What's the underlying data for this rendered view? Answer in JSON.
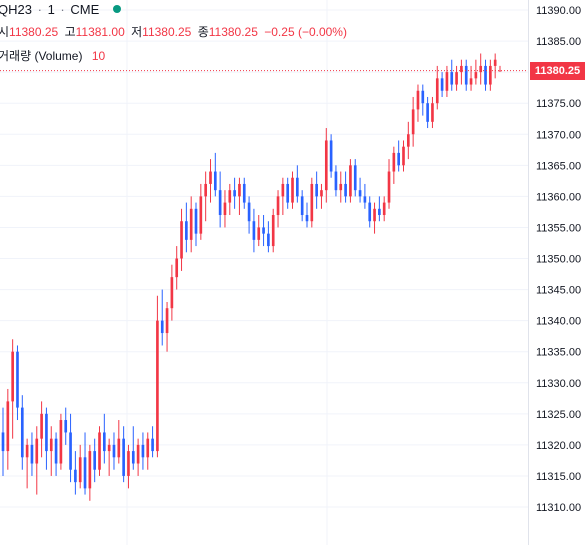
{
  "legend": {
    "symbol": "QH23",
    "interval": "1",
    "exchange": "CME",
    "separator": "·",
    "open_label": "시",
    "open": "11380.25",
    "high_label": "고",
    "high": "11381.00",
    "low_label": "저",
    "low": "11380.25",
    "close_label": "종",
    "close": "11380.25",
    "change": "−0.25 (−0.00%)",
    "volume_label": "거래량 (Volume)",
    "volume_value": "10"
  },
  "colors": {
    "up": "#f23645",
    "down": "#2962ff",
    "grid": "#f0f3fa",
    "axis_text": "#131722",
    "price_line": "#f23645",
    "status_dot": "#089981"
  },
  "chart_data": {
    "type": "candlestick",
    "y_axis": {
      "min": 11310,
      "max": 11390,
      "ticks": [
        "11390.00",
        "11385.00",
        "11380.00",
        "11375.00",
        "11370.00",
        "11365.00",
        "11360.00",
        "11355.00",
        "11350.00",
        "11345.00",
        "11340.00",
        "11335.00",
        "11330.00",
        "11325.00",
        "11320.00",
        "11315.00",
        "11310.00"
      ],
      "position": "right"
    },
    "last_price": "11380.25",
    "grid": true,
    "series": [
      {
        "o": 11322,
        "h": 11326,
        "l": 11315,
        "c": 11319
      },
      {
        "o": 11319,
        "h": 11329,
        "l": 11316,
        "c": 11327
      },
      {
        "o": 11327,
        "h": 11337,
        "l": 11321,
        "c": 11335
      },
      {
        "o": 11335,
        "h": 11336,
        "l": 11324,
        "c": 11326
      },
      {
        "o": 11326,
        "h": 11328,
        "l": 11316,
        "c": 11318
      },
      {
        "o": 11318,
        "h": 11321,
        "l": 11313,
        "c": 11320
      },
      {
        "o": 11320,
        "h": 11322,
        "l": 11315,
        "c": 11317
      },
      {
        "o": 11317,
        "h": 11323,
        "l": 11312,
        "c": 11321
      },
      {
        "o": 11321,
        "h": 11327,
        "l": 11318,
        "c": 11325
      },
      {
        "o": 11325,
        "h": 11326,
        "l": 11316,
        "c": 11319
      },
      {
        "o": 11319,
        "h": 11323,
        "l": 11315,
        "c": 11321
      },
      {
        "o": 11321,
        "h": 11322,
        "l": 11315,
        "c": 11317
      },
      {
        "o": 11317,
        "h": 11325,
        "l": 11316,
        "c": 11324
      },
      {
        "o": 11324,
        "h": 11326,
        "l": 11320,
        "c": 11322
      },
      {
        "o": 11322,
        "h": 11325,
        "l": 11314,
        "c": 11316
      },
      {
        "o": 11316,
        "h": 11319,
        "l": 11312,
        "c": 11314
      },
      {
        "o": 11314,
        "h": 11320,
        "l": 11313,
        "c": 11318
      },
      {
        "o": 11318,
        "h": 11322,
        "l": 11312,
        "c": 11313
      },
      {
        "o": 11313,
        "h": 11320,
        "l": 11311,
        "c": 11319
      },
      {
        "o": 11319,
        "h": 11321,
        "l": 11314,
        "c": 11316
      },
      {
        "o": 11316,
        "h": 11323,
        "l": 11315,
        "c": 11322
      },
      {
        "o": 11322,
        "h": 11325,
        "l": 11317,
        "c": 11319
      },
      {
        "o": 11319,
        "h": 11321,
        "l": 11315,
        "c": 11320
      },
      {
        "o": 11320,
        "h": 11322,
        "l": 11316,
        "c": 11318
      },
      {
        "o": 11318,
        "h": 11324,
        "l": 11317,
        "c": 11321
      },
      {
        "o": 11321,
        "h": 11323,
        "l": 11314,
        "c": 11315
      },
      {
        "o": 11315,
        "h": 11320,
        "l": 11313,
        "c": 11319
      },
      {
        "o": 11319,
        "h": 11323,
        "l": 11316,
        "c": 11317
      },
      {
        "o": 11317,
        "h": 11321,
        "l": 11315,
        "c": 11320
      },
      {
        "o": 11320,
        "h": 11322,
        "l": 11316,
        "c": 11318
      },
      {
        "o": 11318,
        "h": 11322,
        "l": 11316,
        "c": 11321
      },
      {
        "o": 11321,
        "h": 11323,
        "l": 11318,
        "c": 11319
      },
      {
        "o": 11319,
        "h": 11344,
        "l": 11318,
        "c": 11340
      },
      {
        "o": 11340,
        "h": 11345,
        "l": 11336,
        "c": 11338
      },
      {
        "o": 11338,
        "h": 11343,
        "l": 11335,
        "c": 11342
      },
      {
        "o": 11342,
        "h": 11349,
        "l": 11340,
        "c": 11347
      },
      {
        "o": 11347,
        "h": 11352,
        "l": 11345,
        "c": 11350
      },
      {
        "o": 11350,
        "h": 11358,
        "l": 11348,
        "c": 11356
      },
      {
        "o": 11356,
        "h": 11359,
        "l": 11351,
        "c": 11353
      },
      {
        "o": 11353,
        "h": 11360,
        "l": 11351,
        "c": 11358
      },
      {
        "o": 11358,
        "h": 11359,
        "l": 11352,
        "c": 11354
      },
      {
        "o": 11354,
        "h": 11362,
        "l": 11353,
        "c": 11360
      },
      {
        "o": 11360,
        "h": 11364,
        "l": 11356,
        "c": 11362
      },
      {
        "o": 11362,
        "h": 11366,
        "l": 11359,
        "c": 11364
      },
      {
        "o": 11364,
        "h": 11367,
        "l": 11360,
        "c": 11361
      },
      {
        "o": 11361,
        "h": 11364,
        "l": 11355,
        "c": 11357
      },
      {
        "o": 11357,
        "h": 11361,
        "l": 11355,
        "c": 11359
      },
      {
        "o": 11359,
        "h": 11362,
        "l": 11357,
        "c": 11361
      },
      {
        "o": 11361,
        "h": 11363,
        "l": 11358,
        "c": 11360
      },
      {
        "o": 11360,
        "h": 11363,
        "l": 11357,
        "c": 11362
      },
      {
        "o": 11362,
        "h": 11363,
        "l": 11358,
        "c": 11359
      },
      {
        "o": 11359,
        "h": 11360,
        "l": 11354,
        "c": 11356
      },
      {
        "o": 11356,
        "h": 11358,
        "l": 11351,
        "c": 11353
      },
      {
        "o": 11353,
        "h": 11357,
        "l": 11352,
        "c": 11355
      },
      {
        "o": 11355,
        "h": 11357,
        "l": 11352,
        "c": 11354
      },
      {
        "o": 11354,
        "h": 11356,
        "l": 11351,
        "c": 11352
      },
      {
        "o": 11352,
        "h": 11358,
        "l": 11351,
        "c": 11357
      },
      {
        "o": 11357,
        "h": 11361,
        "l": 11355,
        "c": 11360
      },
      {
        "o": 11360,
        "h": 11363,
        "l": 11357,
        "c": 11362
      },
      {
        "o": 11362,
        "h": 11363,
        "l": 11358,
        "c": 11359
      },
      {
        "o": 11359,
        "h": 11364,
        "l": 11358,
        "c": 11363
      },
      {
        "o": 11363,
        "h": 11365,
        "l": 11359,
        "c": 11360
      },
      {
        "o": 11360,
        "h": 11361,
        "l": 11356,
        "c": 11357
      },
      {
        "o": 11357,
        "h": 11359,
        "l": 11355,
        "c": 11356
      },
      {
        "o": 11356,
        "h": 11363,
        "l": 11355,
        "c": 11362
      },
      {
        "o": 11362,
        "h": 11364,
        "l": 11358,
        "c": 11360
      },
      {
        "o": 11360,
        "h": 11362,
        "l": 11358,
        "c": 11361
      },
      {
        "o": 11361,
        "h": 11371,
        "l": 11359,
        "c": 11369
      },
      {
        "o": 11369,
        "h": 11370,
        "l": 11363,
        "c": 11364
      },
      {
        "o": 11364,
        "h": 11365,
        "l": 11360,
        "c": 11361
      },
      {
        "o": 11361,
        "h": 11364,
        "l": 11359,
        "c": 11362
      },
      {
        "o": 11362,
        "h": 11364,
        "l": 11359,
        "c": 11360
      },
      {
        "o": 11360,
        "h": 11366,
        "l": 11359,
        "c": 11365
      },
      {
        "o": 11365,
        "h": 11366,
        "l": 11360,
        "c": 11361
      },
      {
        "o": 11361,
        "h": 11363,
        "l": 11359,
        "c": 11360
      },
      {
        "o": 11360,
        "h": 11362,
        "l": 11358,
        "c": 11359
      },
      {
        "o": 11359,
        "h": 11360,
        "l": 11355,
        "c": 11356
      },
      {
        "o": 11356,
        "h": 11359,
        "l": 11354,
        "c": 11358
      },
      {
        "o": 11358,
        "h": 11360,
        "l": 11356,
        "c": 11357
      },
      {
        "o": 11357,
        "h": 11360,
        "l": 11356,
        "c": 11359
      },
      {
        "o": 11359,
        "h": 11366,
        "l": 11358,
        "c": 11364
      },
      {
        "o": 11364,
        "h": 11368,
        "l": 11362,
        "c": 11367
      },
      {
        "o": 11367,
        "h": 11369,
        "l": 11364,
        "c": 11365
      },
      {
        "o": 11365,
        "h": 11369,
        "l": 11364,
        "c": 11368
      },
      {
        "o": 11368,
        "h": 11372,
        "l": 11366,
        "c": 11370
      },
      {
        "o": 11370,
        "h": 11376,
        "l": 11368,
        "c": 11374
      },
      {
        "o": 11374,
        "h": 11378,
        "l": 11372,
        "c": 11377
      },
      {
        "o": 11377,
        "h": 11378,
        "l": 11373,
        "c": 11375
      },
      {
        "o": 11375,
        "h": 11376,
        "l": 11371,
        "c": 11372
      },
      {
        "o": 11372,
        "h": 11376,
        "l": 11371,
        "c": 11375
      },
      {
        "o": 11375,
        "h": 11381,
        "l": 11374,
        "c": 11379
      },
      {
        "o": 11379,
        "h": 11380,
        "l": 11376,
        "c": 11377
      },
      {
        "o": 11377,
        "h": 11381,
        "l": 11376,
        "c": 11380
      },
      {
        "o": 11380,
        "h": 11382,
        "l": 11377,
        "c": 11378
      },
      {
        "o": 11378,
        "h": 11381,
        "l": 11377,
        "c": 11380
      },
      {
        "o": 11380,
        "h": 11382,
        "l": 11378,
        "c": 11381
      },
      {
        "o": 11381,
        "h": 11382,
        "l": 11377,
        "c": 11378
      },
      {
        "o": 11378,
        "h": 11381,
        "l": 11377,
        "c": 11379
      },
      {
        "o": 11379,
        "h": 11382,
        "l": 11378,
        "c": 11380
      },
      {
        "o": 11380,
        "h": 11383,
        "l": 11378,
        "c": 11381
      },
      {
        "o": 11381,
        "h": 11382,
        "l": 11377,
        "c": 11378
      },
      {
        "o": 11378,
        "h": 11382,
        "l": 11377,
        "c": 11381
      },
      {
        "o": 11381,
        "h": 11383,
        "l": 11379,
        "c": 11382
      },
      {
        "o": 11380.25,
        "h": 11381,
        "l": 11380.25,
        "c": 11380.25
      }
    ]
  }
}
